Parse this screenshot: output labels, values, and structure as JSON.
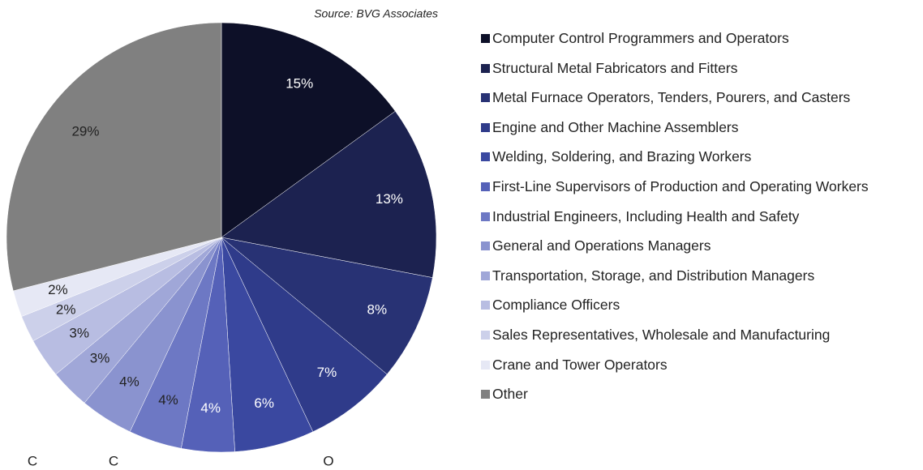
{
  "chart_data": {
    "type": "pie",
    "source": "Source: BVG Associates",
    "categories": [
      "Computer Control Programmers and Operators",
      "Structural Metal Fabricators and Fitters",
      "Metal Furnace Operators, Tenders, Pourers, and Casters",
      "Engine and Other Machine Assemblers",
      "Welding, Soldering, and Brazing Workers",
      "First-Line Supervisors of Production and Operating Workers",
      "Industrial Engineers, Including Health and Safety",
      "General and Operations Managers",
      "Transportation, Storage, and Distribution Managers",
      "Compliance Officers",
      "Sales Representatives, Wholesale and Manufacturing",
      "Crane and Tower Operators",
      "Other"
    ],
    "values": [
      15,
      13,
      8,
      7,
      6,
      4,
      4,
      4,
      3,
      3,
      2,
      2,
      29
    ],
    "value_labels": [
      "15%",
      "13%",
      "8%",
      "7%",
      "6%",
      "4%",
      "4%",
      "4%",
      "3%",
      "3%",
      "2%",
      "2%",
      "29%"
    ],
    "colors": [
      "#0d1028",
      "#1c2250",
      "#283274",
      "#2f3b8a",
      "#3a48a0",
      "#5561b8",
      "#6d78c4",
      "#8a93cf",
      "#a0a7d8",
      "#b8bde2",
      "#ccd0ea",
      "#e6e8f5",
      "#808080"
    ],
    "annotations": [
      "C",
      "C",
      "O"
    ],
    "legend": "right"
  }
}
